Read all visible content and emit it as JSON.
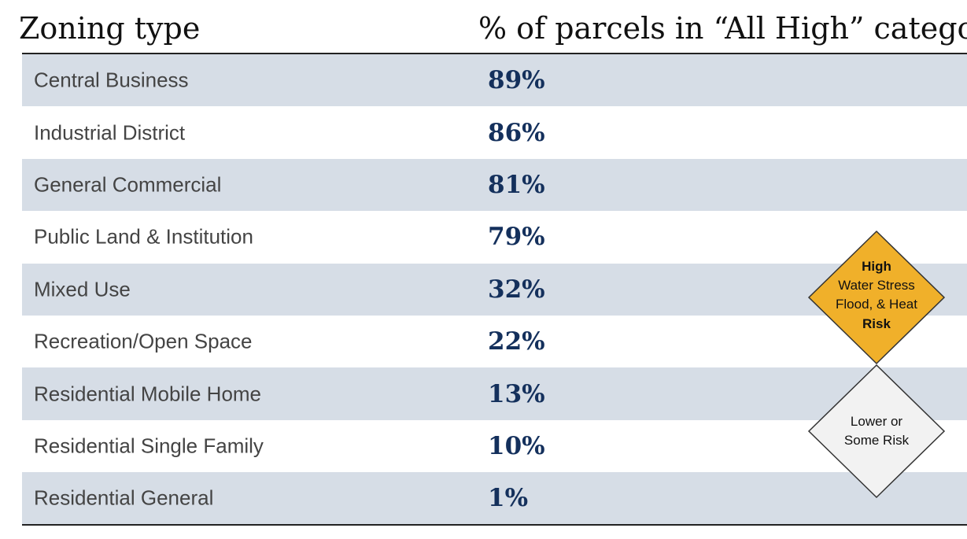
{
  "header": {
    "zoning_label": "Zoning type",
    "percent_label": "% of parcels in “All High” category"
  },
  "chart_data": {
    "type": "table",
    "columns": [
      "Zoning type",
      "% of parcels in “All High” category"
    ],
    "rows": [
      {
        "zone": "Central Business",
        "value": 89,
        "display": "89%"
      },
      {
        "zone": "Industrial District",
        "value": 86,
        "display": "86%"
      },
      {
        "zone": "General Commercial",
        "value": 81,
        "display": "81%"
      },
      {
        "zone": "Public Land & Institution",
        "value": 79,
        "display": "79%"
      },
      {
        "zone": "Mixed Use",
        "value": 32,
        "display": "32%"
      },
      {
        "zone": "Recreation/Open Space",
        "value": 22,
        "display": "22%"
      },
      {
        "zone": "Residential Mobile Home",
        "value": 13,
        "display": "13%"
      },
      {
        "zone": "Residential Single Family",
        "value": 10,
        "display": "10%"
      },
      {
        "zone": "Residential General",
        "value": 1,
        "display": "1%"
      }
    ]
  },
  "legend": {
    "high": {
      "line1": "High",
      "line2": "Water Stress",
      "line3": "Flood, & Heat",
      "line4": "Risk",
      "color": "#f0b02a"
    },
    "low": {
      "line1": "Lower or",
      "line2": "Some Risk",
      "color": "#f2f2f2"
    }
  },
  "colors": {
    "row_band": "#d6dde6",
    "value_text": "#14305c"
  }
}
